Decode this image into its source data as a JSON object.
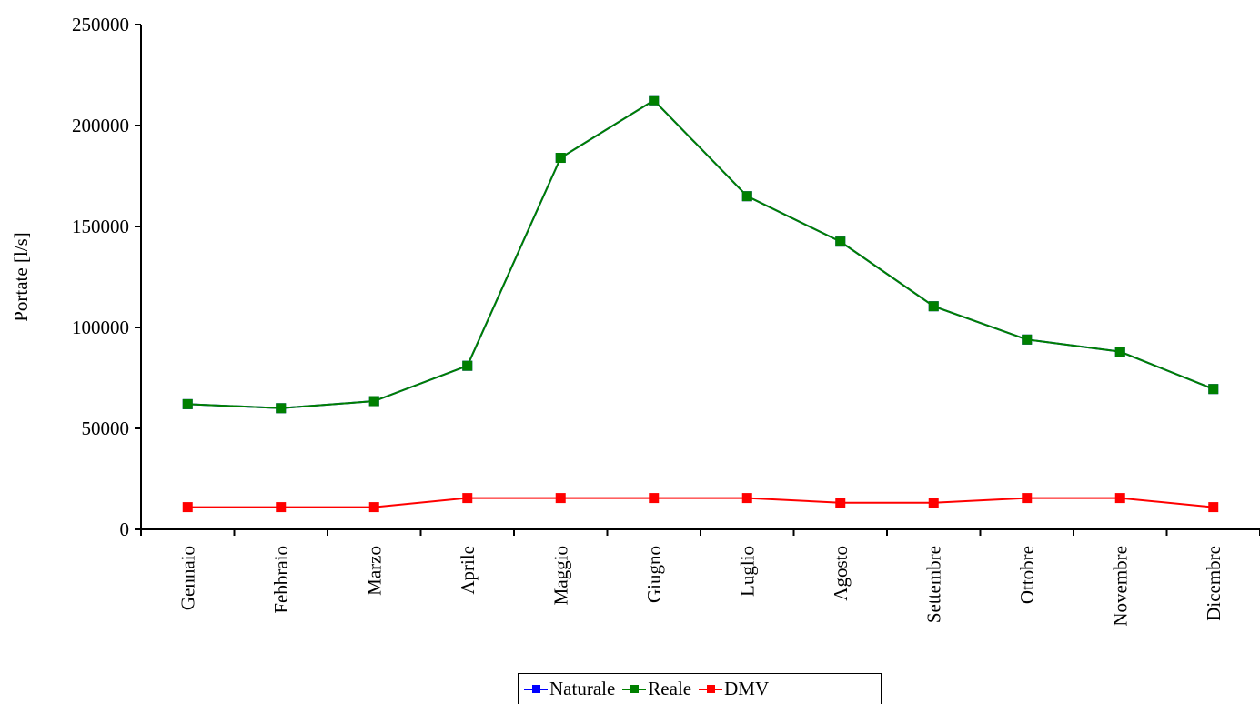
{
  "chart_data": {
    "type": "line",
    "categories": [
      "Gennaio",
      "Febbraio",
      "Marzo",
      "Aprile",
      "Maggio",
      "Giugno",
      "Luglio",
      "Agosto",
      "Settembre",
      "Ottobre",
      "Novembre",
      "Dicembre"
    ],
    "series": [
      {
        "name": "Naturale",
        "color": "#0000ff",
        "values": [
          62000,
          60000,
          63500,
          81000,
          184000,
          212500,
          165000,
          142500,
          110500,
          94000,
          88000,
          69500
        ]
      },
      {
        "name": "Reale",
        "color": "#008000",
        "values": [
          62000,
          60000,
          63500,
          81000,
          184000,
          212500,
          165000,
          142500,
          110500,
          94000,
          88000,
          69500
        ]
      },
      {
        "name": "DMV",
        "color": "#ff0000",
        "values": [
          11000,
          11000,
          11000,
          15500,
          15500,
          15500,
          15500,
          13200,
          13200,
          15500,
          15500,
          11000
        ]
      }
    ],
    "ylabel": "Portate [l/s]",
    "xlabel": "",
    "ylim": [
      0,
      250000
    ],
    "yticks": [
      "0",
      "50000",
      "100000",
      "150000",
      "200000",
      "250000"
    ],
    "grid": false,
    "legend_position": "bottom-center"
  }
}
